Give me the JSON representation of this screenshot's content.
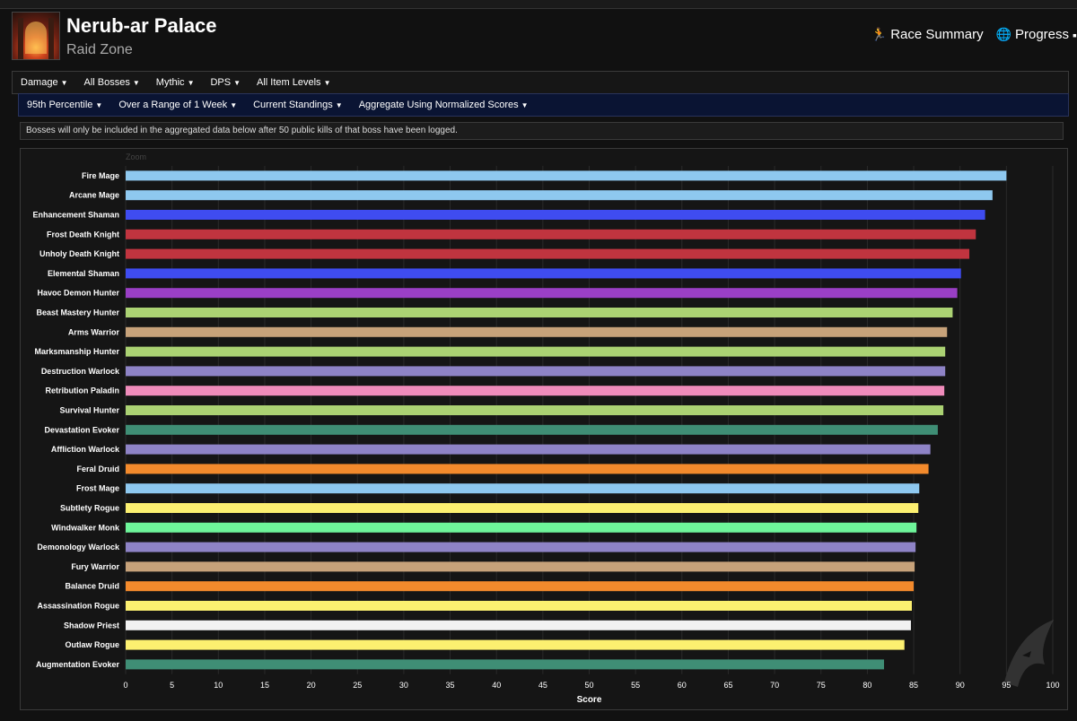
{
  "header": {
    "title": "Nerub-ar Palace",
    "subtitle": "Raid Zone",
    "links": [
      {
        "label": "Race Summary",
        "icon": "runner-icon"
      },
      {
        "label": "Progress",
        "icon": "globe-icon"
      }
    ]
  },
  "filters_primary": [
    "Damage",
    "All Bosses",
    "Mythic",
    "DPS",
    "All Item Levels"
  ],
  "filters_secondary": [
    "95th Percentile",
    "Over a Range of 1 Week",
    "Current Standings",
    "Aggregate Using Normalized Scores"
  ],
  "notice": "Bosses will only be included in the aggregated data below after 50 public kills of that boss have been logged.",
  "chart_data": {
    "type": "bar",
    "orientation": "horizontal",
    "zoom_label": "Zoom",
    "xlabel": "Score",
    "xlim": [
      0,
      100
    ],
    "xticks": [
      0,
      5,
      10,
      15,
      20,
      25,
      30,
      35,
      40,
      45,
      50,
      55,
      60,
      65,
      70,
      75,
      80,
      85,
      90,
      95,
      100
    ],
    "grid": true,
    "categories": [
      "Fire Mage",
      "Arcane Mage",
      "Enhancement Shaman",
      "Frost Death Knight",
      "Unholy Death Knight",
      "Elemental Shaman",
      "Havoc Demon Hunter",
      "Beast Mastery Hunter",
      "Arms Warrior",
      "Marksmanship Hunter",
      "Destruction Warlock",
      "Retribution Paladin",
      "Survival Hunter",
      "Devastation Evoker",
      "Affliction Warlock",
      "Feral Druid",
      "Frost Mage",
      "Subtlety Rogue",
      "Windwalker Monk",
      "Demonology Warlock",
      "Fury Warrior",
      "Balance Druid",
      "Assassination Rogue",
      "Shadow Priest",
      "Outlaw Rogue",
      "Augmentation Evoker"
    ],
    "values": [
      95.0,
      93.5,
      92.7,
      91.7,
      91.0,
      90.1,
      89.7,
      89.2,
      88.6,
      88.4,
      88.4,
      88.3,
      88.2,
      87.6,
      86.8,
      86.6,
      85.6,
      85.5,
      85.3,
      85.2,
      85.1,
      85.0,
      84.8,
      84.7,
      84.0,
      81.8
    ],
    "colors": [
      "#8ec8ef",
      "#8ec8ef",
      "#3f4cf0",
      "#c0343f",
      "#c0343f",
      "#3f4cf0",
      "#9a3fc6",
      "#abd273",
      "#c7a27a",
      "#abd273",
      "#8e83c6",
      "#f08cbb",
      "#abd273",
      "#3f8e75",
      "#8e83c6",
      "#f38a2c",
      "#8ec8ef",
      "#fcf070",
      "#6ef59a",
      "#8e83c6",
      "#c7a27a",
      "#f38a2c",
      "#fcf070",
      "#f2f2f2",
      "#fcf070",
      "#3f8e75"
    ]
  }
}
